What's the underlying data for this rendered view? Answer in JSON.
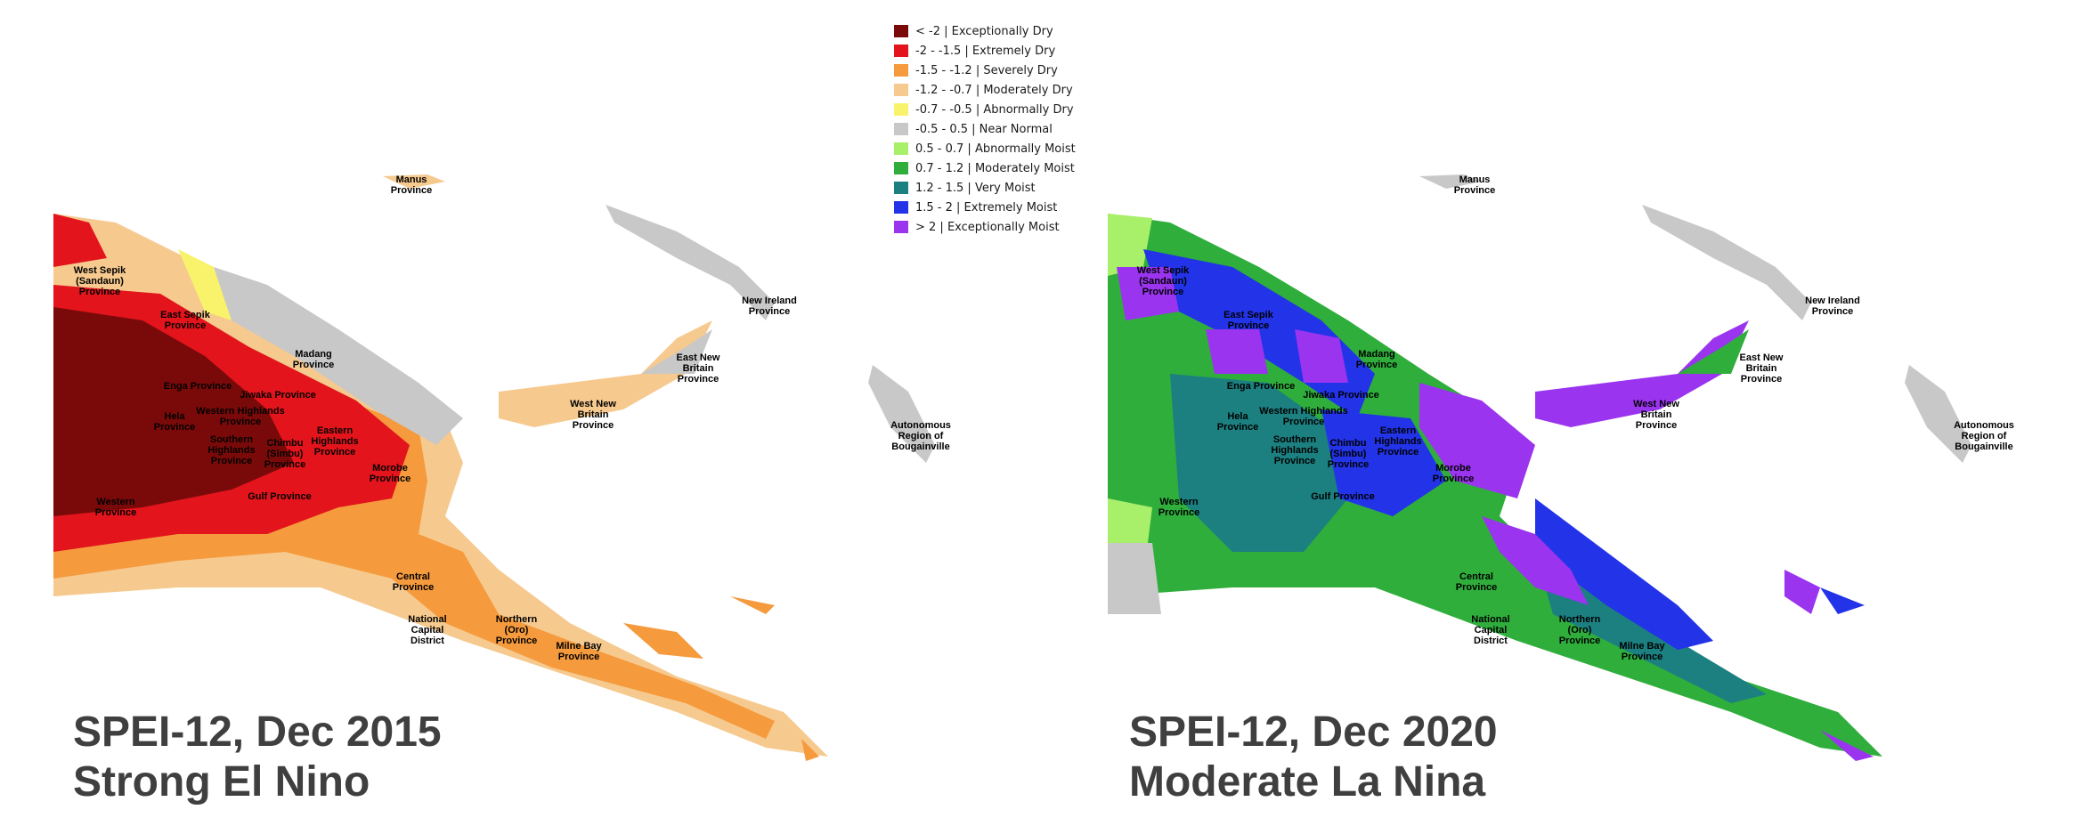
{
  "legend": {
    "items": [
      {
        "label": "< -2 | Exceptionally Dry",
        "color": "#7a0a0a"
      },
      {
        "label": "-2 - -1.5 | Extremely Dry",
        "color": "#e3141c"
      },
      {
        "label": "-1.5 - -1.2 | Severely Dry",
        "color": "#f59a3d"
      },
      {
        "label": "-1.2 - -0.7 | Moderately Dry",
        "color": "#f6c98e"
      },
      {
        "label": "-0.7 - -0.5 | Abnormally Dry",
        "color": "#f8f36a"
      },
      {
        "label": "-0.5 - 0.5 | Near Normal",
        "color": "#c8c8c8"
      },
      {
        "label": "0.5 - 0.7 | Abnormally Moist",
        "color": "#a8ef6a"
      },
      {
        "label": "0.7 - 1.2 | Moderately Moist",
        "color": "#2fae3c"
      },
      {
        "label": "1.2 - 1.5 | Very Moist",
        "color": "#1c7f80"
      },
      {
        "label": "1.5 - 2 | Extremely Moist",
        "color": "#2233e8"
      },
      {
        "label": "> 2 | Exceptionally Moist",
        "color": "#9a34ef"
      }
    ]
  },
  "provinces": {
    "manus": "Manus\nProvince",
    "west_sepik": "West Sepik\n(Sandaun)\nProvince",
    "east_sepik": "East Sepik\nProvince",
    "madang": "Madang\nProvince",
    "enga": "Enga Province",
    "jiwaka": "Jiwaka Province",
    "hela": "Hela\nProvince",
    "western_highlands": "Western Highlands\nProvince",
    "southern_highlands": "Southern\nHighlands\nProvince",
    "chimbu": "Chimbu\n(Simbu)\nProvince",
    "eastern_highlands": "Eastern\nHighlands\nProvince",
    "morobe": "Morobe\nProvince",
    "western": "Western\nProvince",
    "gulf": "Gulf Province",
    "central": "Central\nProvince",
    "ncd": "National\nCapital\nDistrict",
    "northern": "Northern\n(Oro)\nProvince",
    "milne_bay": "Milne Bay\nProvince",
    "new_ireland": "New Ireland\nProvince",
    "east_new_britain": "East New\nBritain\nProvince",
    "west_new_britain": "West New\nBritain\nProvince",
    "bougainville": "Autonomous\nRegion of\nBougainville"
  },
  "maps": [
    {
      "caption_line1": "SPEI-12, Dec 2015",
      "caption_line2": "Strong El Nino"
    },
    {
      "caption_line1": "SPEI-12, Dec 2020",
      "caption_line2": "Moderate La Nina"
    }
  ]
}
